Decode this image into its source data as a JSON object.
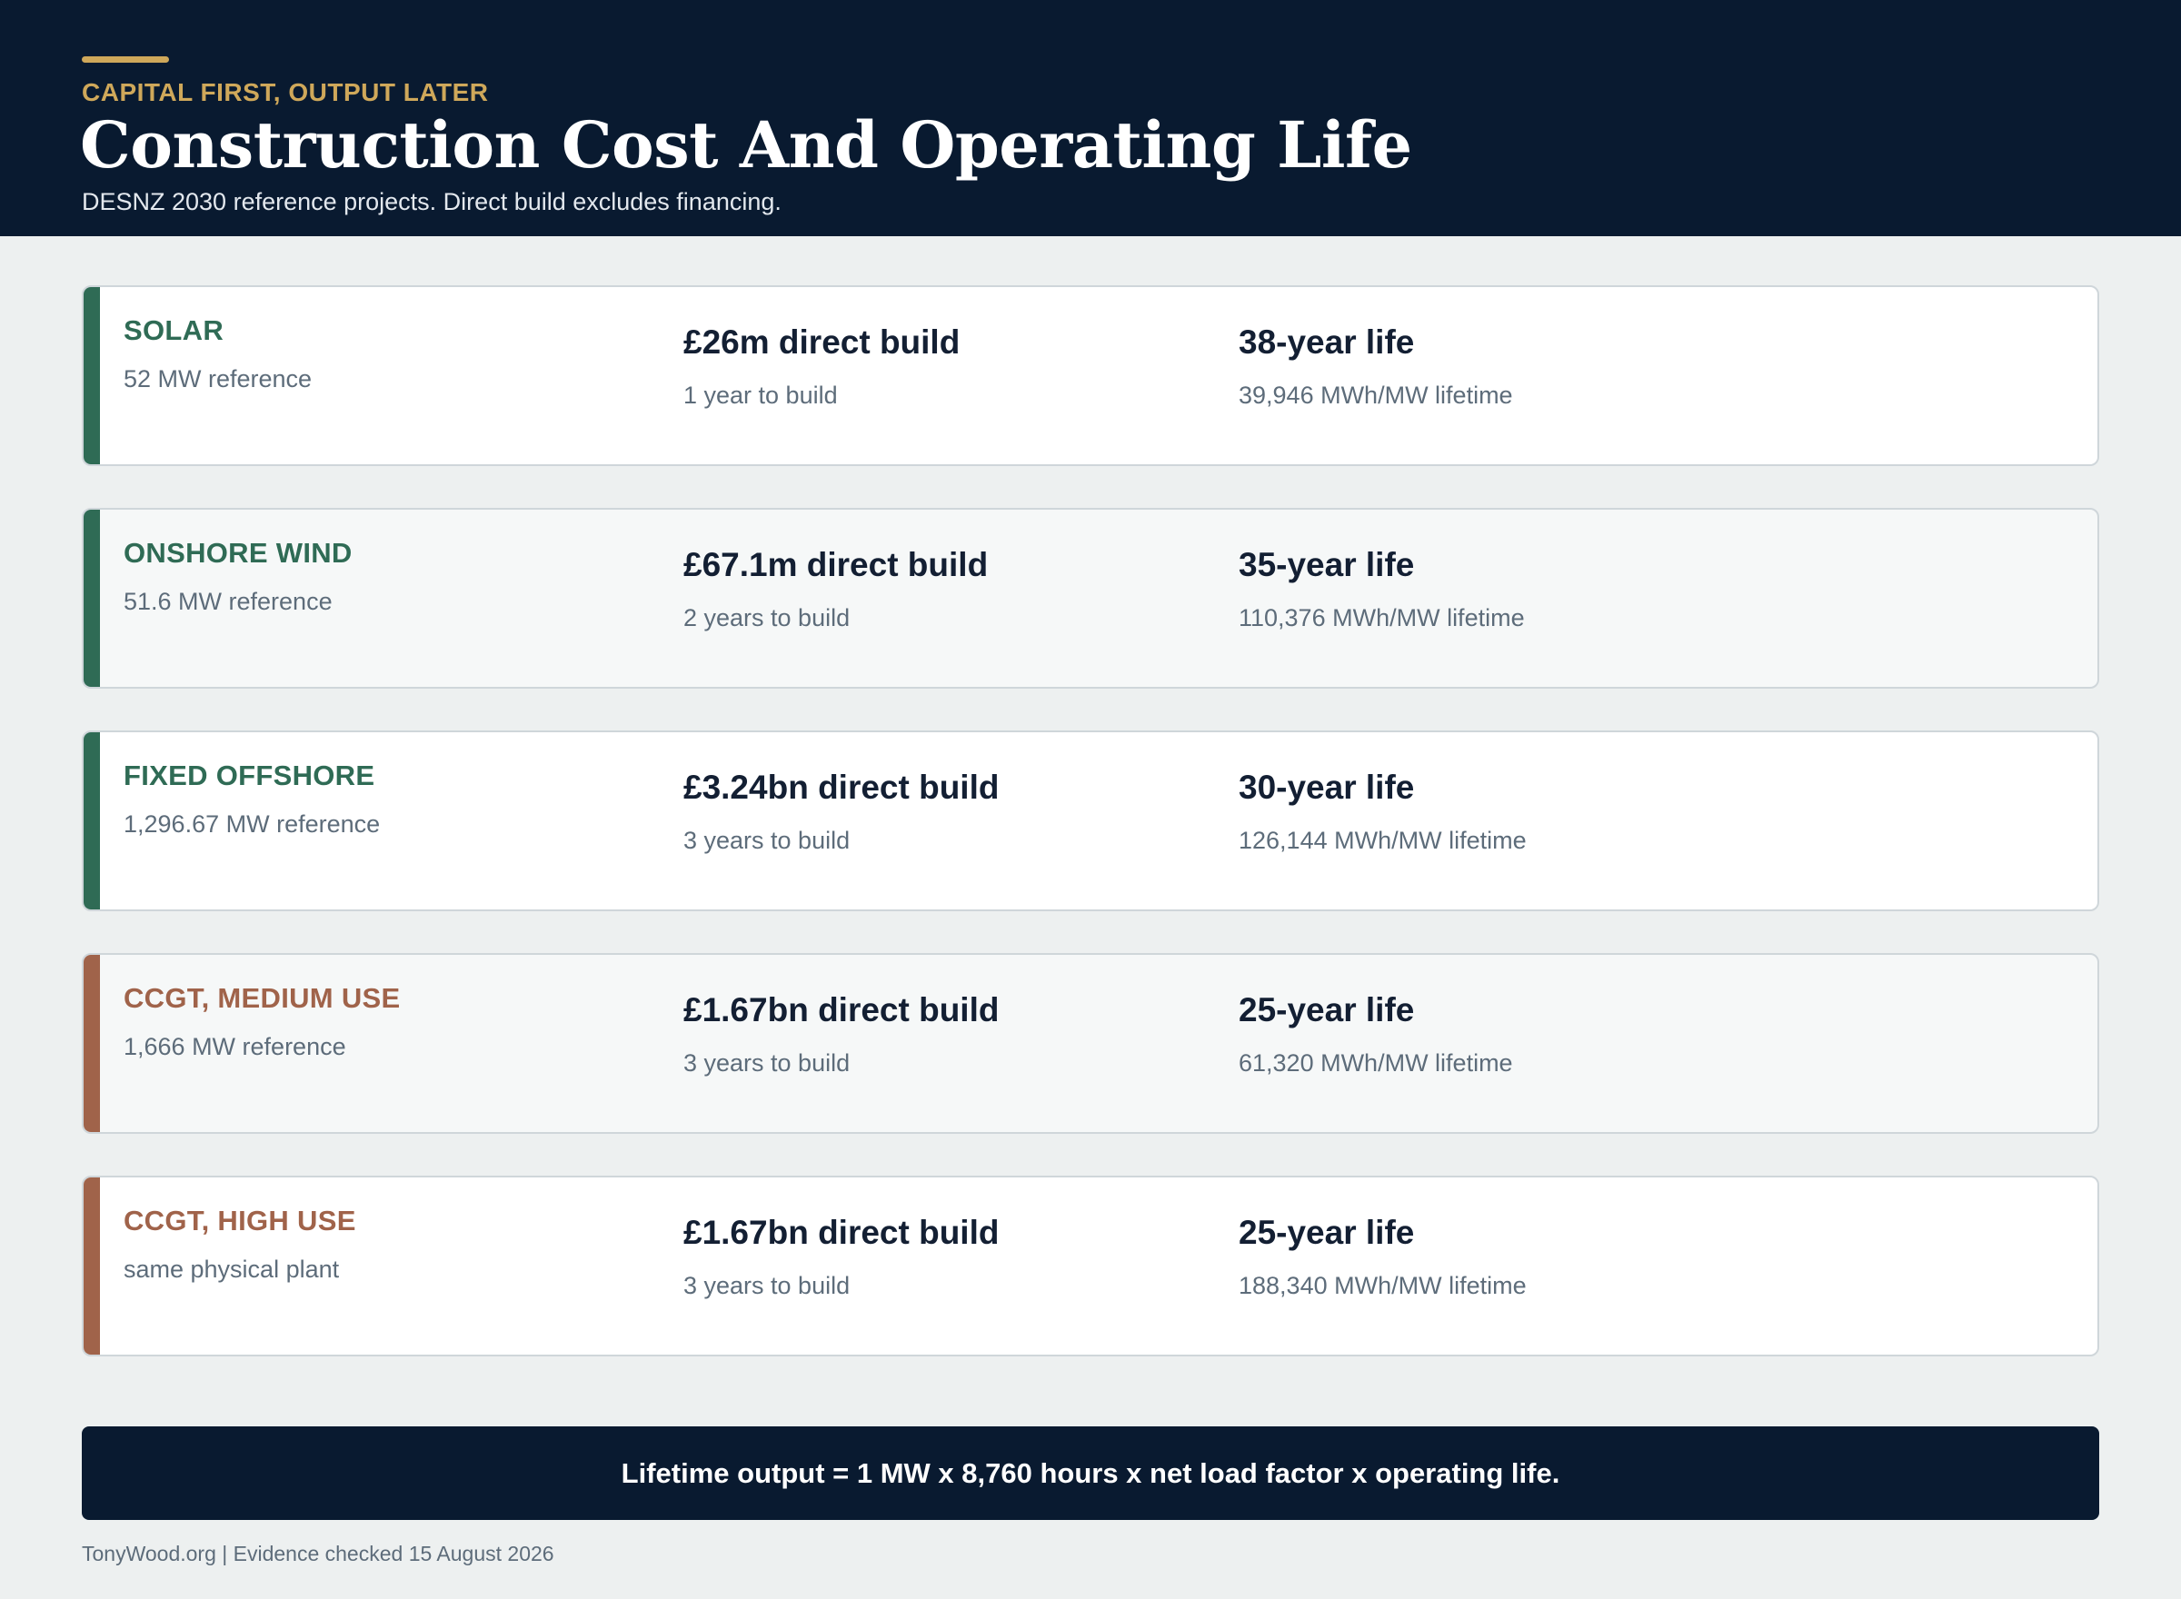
{
  "header": {
    "kicker": "CAPITAL FIRST, OUTPUT LATER",
    "title": "Construction Cost And Operating Life",
    "subtitle": "DESNZ 2030 reference projects. Direct build excludes financing."
  },
  "colors": {
    "renewable": "#2f6b55",
    "gas": "#a0634a"
  },
  "technologies": [
    {
      "name": "SOLAR",
      "reference": "52 MW reference",
      "cost": "£26m direct build",
      "build_time": "1 year to build",
      "life": "38-year life",
      "lifetime_output": "39,946 MWh/MW lifetime",
      "group": "renewable"
    },
    {
      "name": "ONSHORE WIND",
      "reference": "51.6 MW reference",
      "cost": "£67.1m direct build",
      "build_time": "2 years to build",
      "life": "35-year life",
      "lifetime_output": "110,376 MWh/MW lifetime",
      "group": "renewable"
    },
    {
      "name": "FIXED OFFSHORE",
      "reference": "1,296.67 MW reference",
      "cost": "£3.24bn direct build",
      "build_time": "3 years to build",
      "life": "30-year life",
      "lifetime_output": "126,144 MWh/MW lifetime",
      "group": "renewable"
    },
    {
      "name": "CCGT, MEDIUM USE",
      "reference": "1,666 MW reference",
      "cost": "£1.67bn direct build",
      "build_time": "3 years to build",
      "life": "25-year life",
      "lifetime_output": "61,320 MWh/MW lifetime",
      "group": "gas"
    },
    {
      "name": "CCGT, HIGH USE",
      "reference": "same physical plant",
      "cost": "£1.67bn direct build",
      "build_time": "3 years to build",
      "life": "25-year life",
      "lifetime_output": "188,340 MWh/MW lifetime",
      "group": "gas"
    }
  ],
  "formula": "Lifetime output = 1 MW x 8,760 hours x net load factor x operating life.",
  "footer": "TonyWood.org | Evidence checked 15 August 2026"
}
